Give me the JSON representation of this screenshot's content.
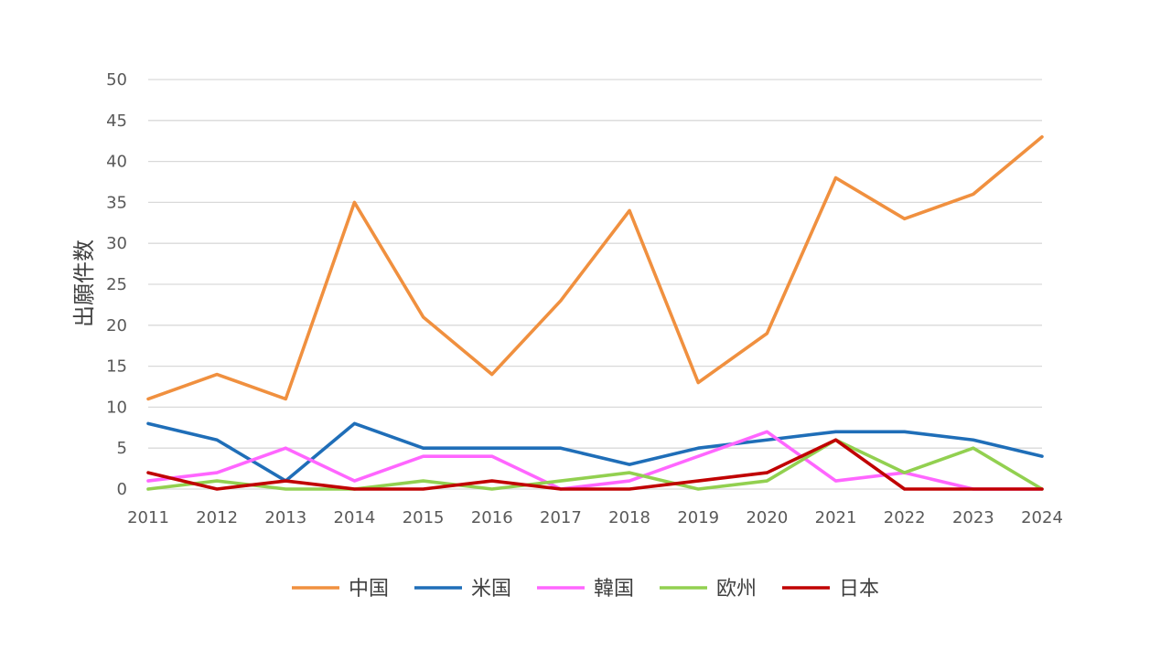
{
  "chart_data": {
    "type": "line",
    "title": "",
    "xlabel": "",
    "ylabel": "出願件数",
    "ylim": [
      0,
      50
    ],
    "y_ticks": [
      "0",
      "5",
      "10",
      "15",
      "20",
      "25",
      "30",
      "35",
      "40",
      "45",
      "50"
    ],
    "grid": true,
    "legend_position": "bottom",
    "categories": [
      "2011",
      "2012",
      "2013",
      "2014",
      "2015",
      "2016",
      "2017",
      "2018",
      "2019",
      "2020",
      "2021",
      "2022",
      "2023",
      "2024"
    ],
    "series": [
      {
        "name": "中国",
        "color": "#F0903F",
        "values": [
          11,
          14,
          11,
          35,
          21,
          14,
          23,
          34,
          13,
          19,
          38,
          33,
          36,
          43
        ]
      },
      {
        "name": "米国",
        "color": "#1F6EB8",
        "values": [
          8,
          6,
          1,
          8,
          5,
          5,
          5,
          3,
          5,
          6,
          7,
          7,
          6,
          4
        ]
      },
      {
        "name": "韓国",
        "color": "#FF66FF",
        "values": [
          1,
          2,
          5,
          1,
          4,
          4,
          0,
          1,
          4,
          7,
          1,
          2,
          0,
          0
        ]
      },
      {
        "name": "欧州",
        "color": "#92D050",
        "values": [
          0,
          1,
          0,
          0,
          1,
          0,
          1,
          2,
          0,
          1,
          6,
          2,
          5,
          0
        ]
      },
      {
        "name": "日本",
        "color": "#C00000",
        "values": [
          2,
          0,
          1,
          0,
          0,
          1,
          0,
          0,
          1,
          2,
          6,
          0,
          0,
          0
        ]
      }
    ]
  }
}
